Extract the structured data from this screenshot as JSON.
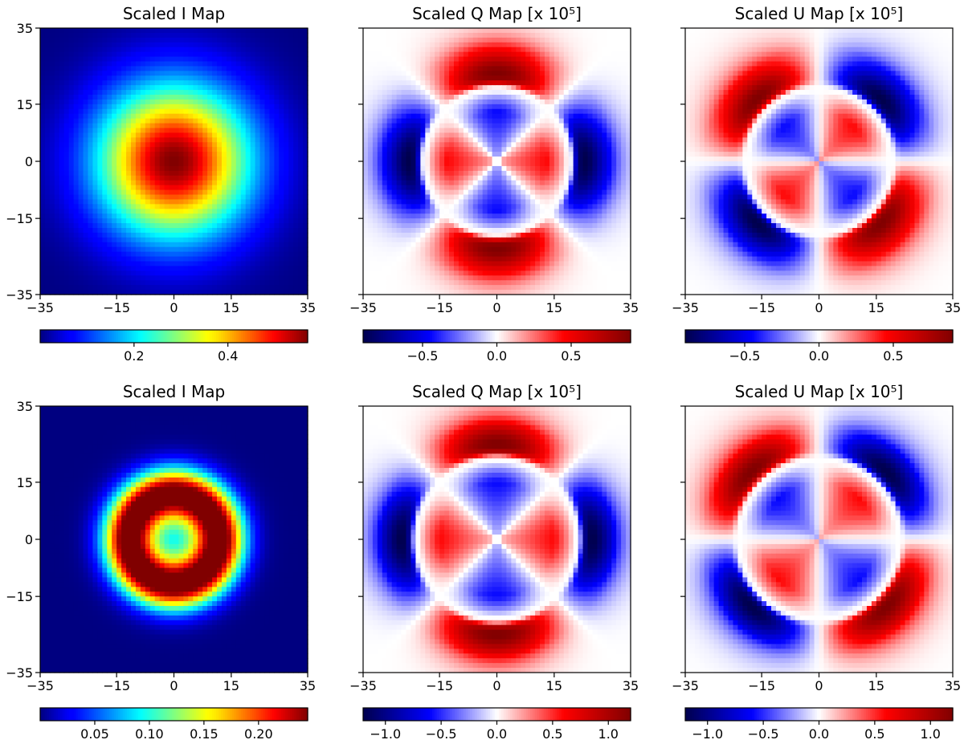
{
  "chart_data": [
    {
      "type": "heatmap",
      "row": 0,
      "col": 0,
      "title": "Scaled I Map",
      "colormap": "jet",
      "xlim": [
        -35,
        35
      ],
      "ylim": [
        -35,
        35
      ],
      "xticks": [
        -35,
        -15,
        0,
        15,
        35
      ],
      "yticks": [
        -35,
        -15,
        0,
        15,
        35
      ],
      "show_yticklabels": true,
      "colorbar": {
        "range": [
          0.0,
          0.57
        ],
        "ticks": [
          0.2,
          0.4
        ],
        "tick_labels": [
          "0.2",
          "0.4"
        ]
      },
      "pattern": {
        "kind": "I-gaussian",
        "peak": 0.57,
        "sigma": 14
      }
    },
    {
      "type": "heatmap",
      "row": 0,
      "col": 1,
      "title": "Scaled Q Map [x 10⁵]",
      "colormap": "seismic",
      "xlim": [
        -35,
        35
      ],
      "ylim": [
        -35,
        35
      ],
      "xticks": [
        -35,
        -15,
        0,
        15,
        35
      ],
      "yticks": [
        -35,
        -15,
        0,
        15,
        35
      ],
      "show_yticklabels": false,
      "colorbar": {
        "range": [
          -0.9,
          0.9
        ],
        "ticks": [
          -0.5,
          0.0,
          0.5
        ],
        "tick_labels": [
          "−0.5",
          "0.0",
          "0.5"
        ]
      },
      "pattern": {
        "kind": "Q",
        "ring_radius": 19,
        "amp": 0.9
      }
    },
    {
      "type": "heatmap",
      "row": 0,
      "col": 2,
      "title": "Scaled U Map [x 10⁵]",
      "colormap": "seismic",
      "xlim": [
        -35,
        35
      ],
      "ylim": [
        -35,
        35
      ],
      "xticks": [
        -35,
        -15,
        0,
        15,
        35
      ],
      "yticks": [
        -35,
        -15,
        0,
        15,
        35
      ],
      "show_yticklabels": false,
      "colorbar": {
        "range": [
          -0.9,
          0.9
        ],
        "ticks": [
          -0.5,
          0.0,
          0.5
        ],
        "tick_labels": [
          "−0.5",
          "0.0",
          "0.5"
        ]
      },
      "pattern": {
        "kind": "U",
        "ring_radius": 19,
        "amp": 0.9
      }
    },
    {
      "type": "heatmap",
      "row": 1,
      "col": 0,
      "title": "Scaled I Map",
      "colormap": "jet",
      "xlim": [
        -35,
        35
      ],
      "ylim": [
        -35,
        35
      ],
      "xticks": [
        -35,
        -15,
        0,
        15,
        35
      ],
      "yticks": [
        -35,
        -15,
        0,
        15,
        35
      ],
      "show_yticklabels": true,
      "colorbar": {
        "range": [
          0.0,
          0.245
        ],
        "ticks": [
          0.05,
          0.1,
          0.15,
          0.2
        ],
        "tick_labels": [
          "0.05",
          "0.10",
          "0.15",
          "0.20"
        ]
      },
      "pattern": {
        "kind": "I-ring",
        "peak": 0.245,
        "ring_radius": 12,
        "center_value": 0.11
      }
    },
    {
      "type": "heatmap",
      "row": 1,
      "col": 1,
      "title": "Scaled Q Map [x 10⁵]",
      "colormap": "seismic",
      "xlim": [
        -35,
        35
      ],
      "ylim": [
        -35,
        35
      ],
      "xticks": [
        -35,
        -15,
        0,
        15,
        35
      ],
      "yticks": [
        -35,
        -15,
        0,
        15,
        35
      ],
      "show_yticklabels": false,
      "colorbar": {
        "range": [
          -1.2,
          1.2
        ],
        "ticks": [
          -1.0,
          -0.5,
          0.0,
          0.5,
          1.0
        ],
        "tick_labels": [
          "−1.0",
          "−0.5",
          "0.0",
          "0.5",
          "1.0"
        ]
      },
      "pattern": {
        "kind": "Q",
        "ring_radius": 21,
        "amp": 1.2
      }
    },
    {
      "type": "heatmap",
      "row": 1,
      "col": 2,
      "title": "Scaled U Map [x 10⁵]",
      "colormap": "seismic",
      "xlim": [
        -35,
        35
      ],
      "ylim": [
        -35,
        35
      ],
      "xticks": [
        -35,
        -15,
        0,
        15,
        35
      ],
      "yticks": [
        -35,
        -15,
        0,
        15,
        35
      ],
      "show_yticklabels": false,
      "colorbar": {
        "range": [
          -1.2,
          1.2
        ],
        "ticks": [
          -1.0,
          -0.5,
          0.0,
          0.5,
          1.0
        ],
        "tick_labels": [
          "−1.0",
          "−0.5",
          "0.0",
          "0.5",
          "1.0"
        ]
      },
      "pattern": {
        "kind": "U",
        "ring_radius": 21,
        "amp": 1.2
      }
    }
  ]
}
